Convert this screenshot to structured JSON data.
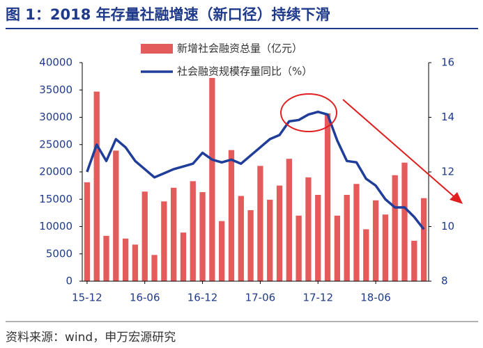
{
  "chart_data": {
    "type": "bar_line",
    "title": "图 1：2018 年存量社融增速（新口径）持续下滑",
    "source": "资料来源：wind，申万宏源研究",
    "categories": [
      "15-12",
      null,
      null,
      null,
      null,
      null,
      "16-06",
      null,
      null,
      null,
      null,
      null,
      "16-12",
      null,
      null,
      null,
      null,
      null,
      "17-06",
      null,
      null,
      null,
      null,
      null,
      "17-12",
      null,
      null,
      null,
      null,
      null,
      "18-06",
      null,
      null,
      null,
      null,
      null
    ],
    "series": [
      {
        "name": "新增社会融资总量（亿元）",
        "type": "bar",
        "color": "#e35b5b",
        "values": [
          18100,
          34700,
          8300,
          23900,
          7800,
          6700,
          16400,
          4800,
          14600,
          17100,
          8900,
          18300,
          16300,
          37200,
          11000,
          24000,
          15600,
          13000,
          21100,
          14900,
          17500,
          22400,
          12000,
          19000,
          15800,
          30700,
          12000,
          15800,
          17800,
          9500,
          14800,
          12200,
          19400,
          21700,
          7400,
          15200
        ]
      },
      {
        "name": "社会融资规模存量同比（%）",
        "type": "line",
        "axis": "y2",
        "color": "#1f3d99",
        "values": [
          12.0,
          13.0,
          12.4,
          13.2,
          12.9,
          12.4,
          12.1,
          11.8,
          11.95,
          12.1,
          12.2,
          12.3,
          12.7,
          12.45,
          12.35,
          12.45,
          12.3,
          12.6,
          12.9,
          13.2,
          13.35,
          13.85,
          13.9,
          14.1,
          14.2,
          14.1,
          13.15,
          12.4,
          12.35,
          11.75,
          11.5,
          11.0,
          10.7,
          10.7,
          10.35,
          9.9
        ]
      }
    ],
    "ylim": [
      0,
      40000
    ],
    "yticks": [
      0,
      5000,
      10000,
      15000,
      20000,
      25000,
      30000,
      35000,
      40000
    ],
    "y2lim": [
      8,
      16
    ],
    "y2ticks": [
      8,
      10,
      12,
      14,
      16
    ],
    "legend": "top"
  }
}
